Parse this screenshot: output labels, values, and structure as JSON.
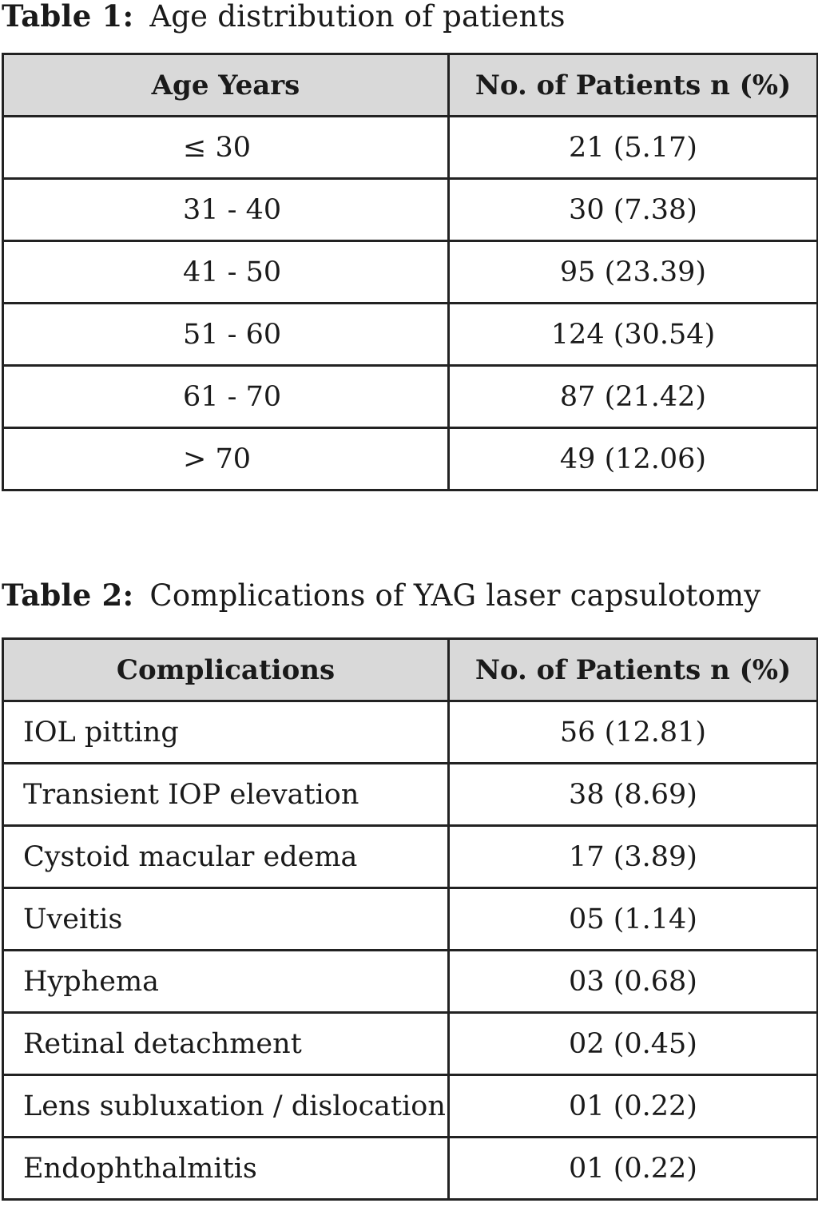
{
  "table1": {
    "label": "Table 1:",
    "title": "Age distribution of patients",
    "headers": [
      "Age Years",
      "No. of Patients n (%)"
    ],
    "rows": [
      [
        "≤ 30",
        "21 (5.17)"
      ],
      [
        "31 - 40",
        "30 (7.38)"
      ],
      [
        "41 - 50",
        "95 (23.39)"
      ],
      [
        "51 - 60",
        "124 (30.54)"
      ],
      [
        "61 - 70",
        "87 (21.42)"
      ],
      [
        "> 70",
        "49 (12.06)"
      ]
    ]
  },
  "table2": {
    "label": "Table 2:",
    "title": "Complications of YAG laser capsulotomy",
    "headers": [
      "Complications",
      "No. of Patients n (%)"
    ],
    "rows": [
      [
        "IOL pitting",
        "56 (12.81)"
      ],
      [
        "Transient IOP elevation",
        "38 (8.69)"
      ],
      [
        "Cystoid macular edema",
        "17 (3.89)"
      ],
      [
        "Uveitis",
        "05 (1.14)"
      ],
      [
        "Hyphema",
        "03 (0.68)"
      ],
      [
        "Retinal detachment",
        "02 (0.45)"
      ],
      [
        "Lens subluxation / dislocation",
        "01 (0.22)"
      ],
      [
        "Endophthalmitis",
        "01 (0.22)"
      ]
    ]
  }
}
